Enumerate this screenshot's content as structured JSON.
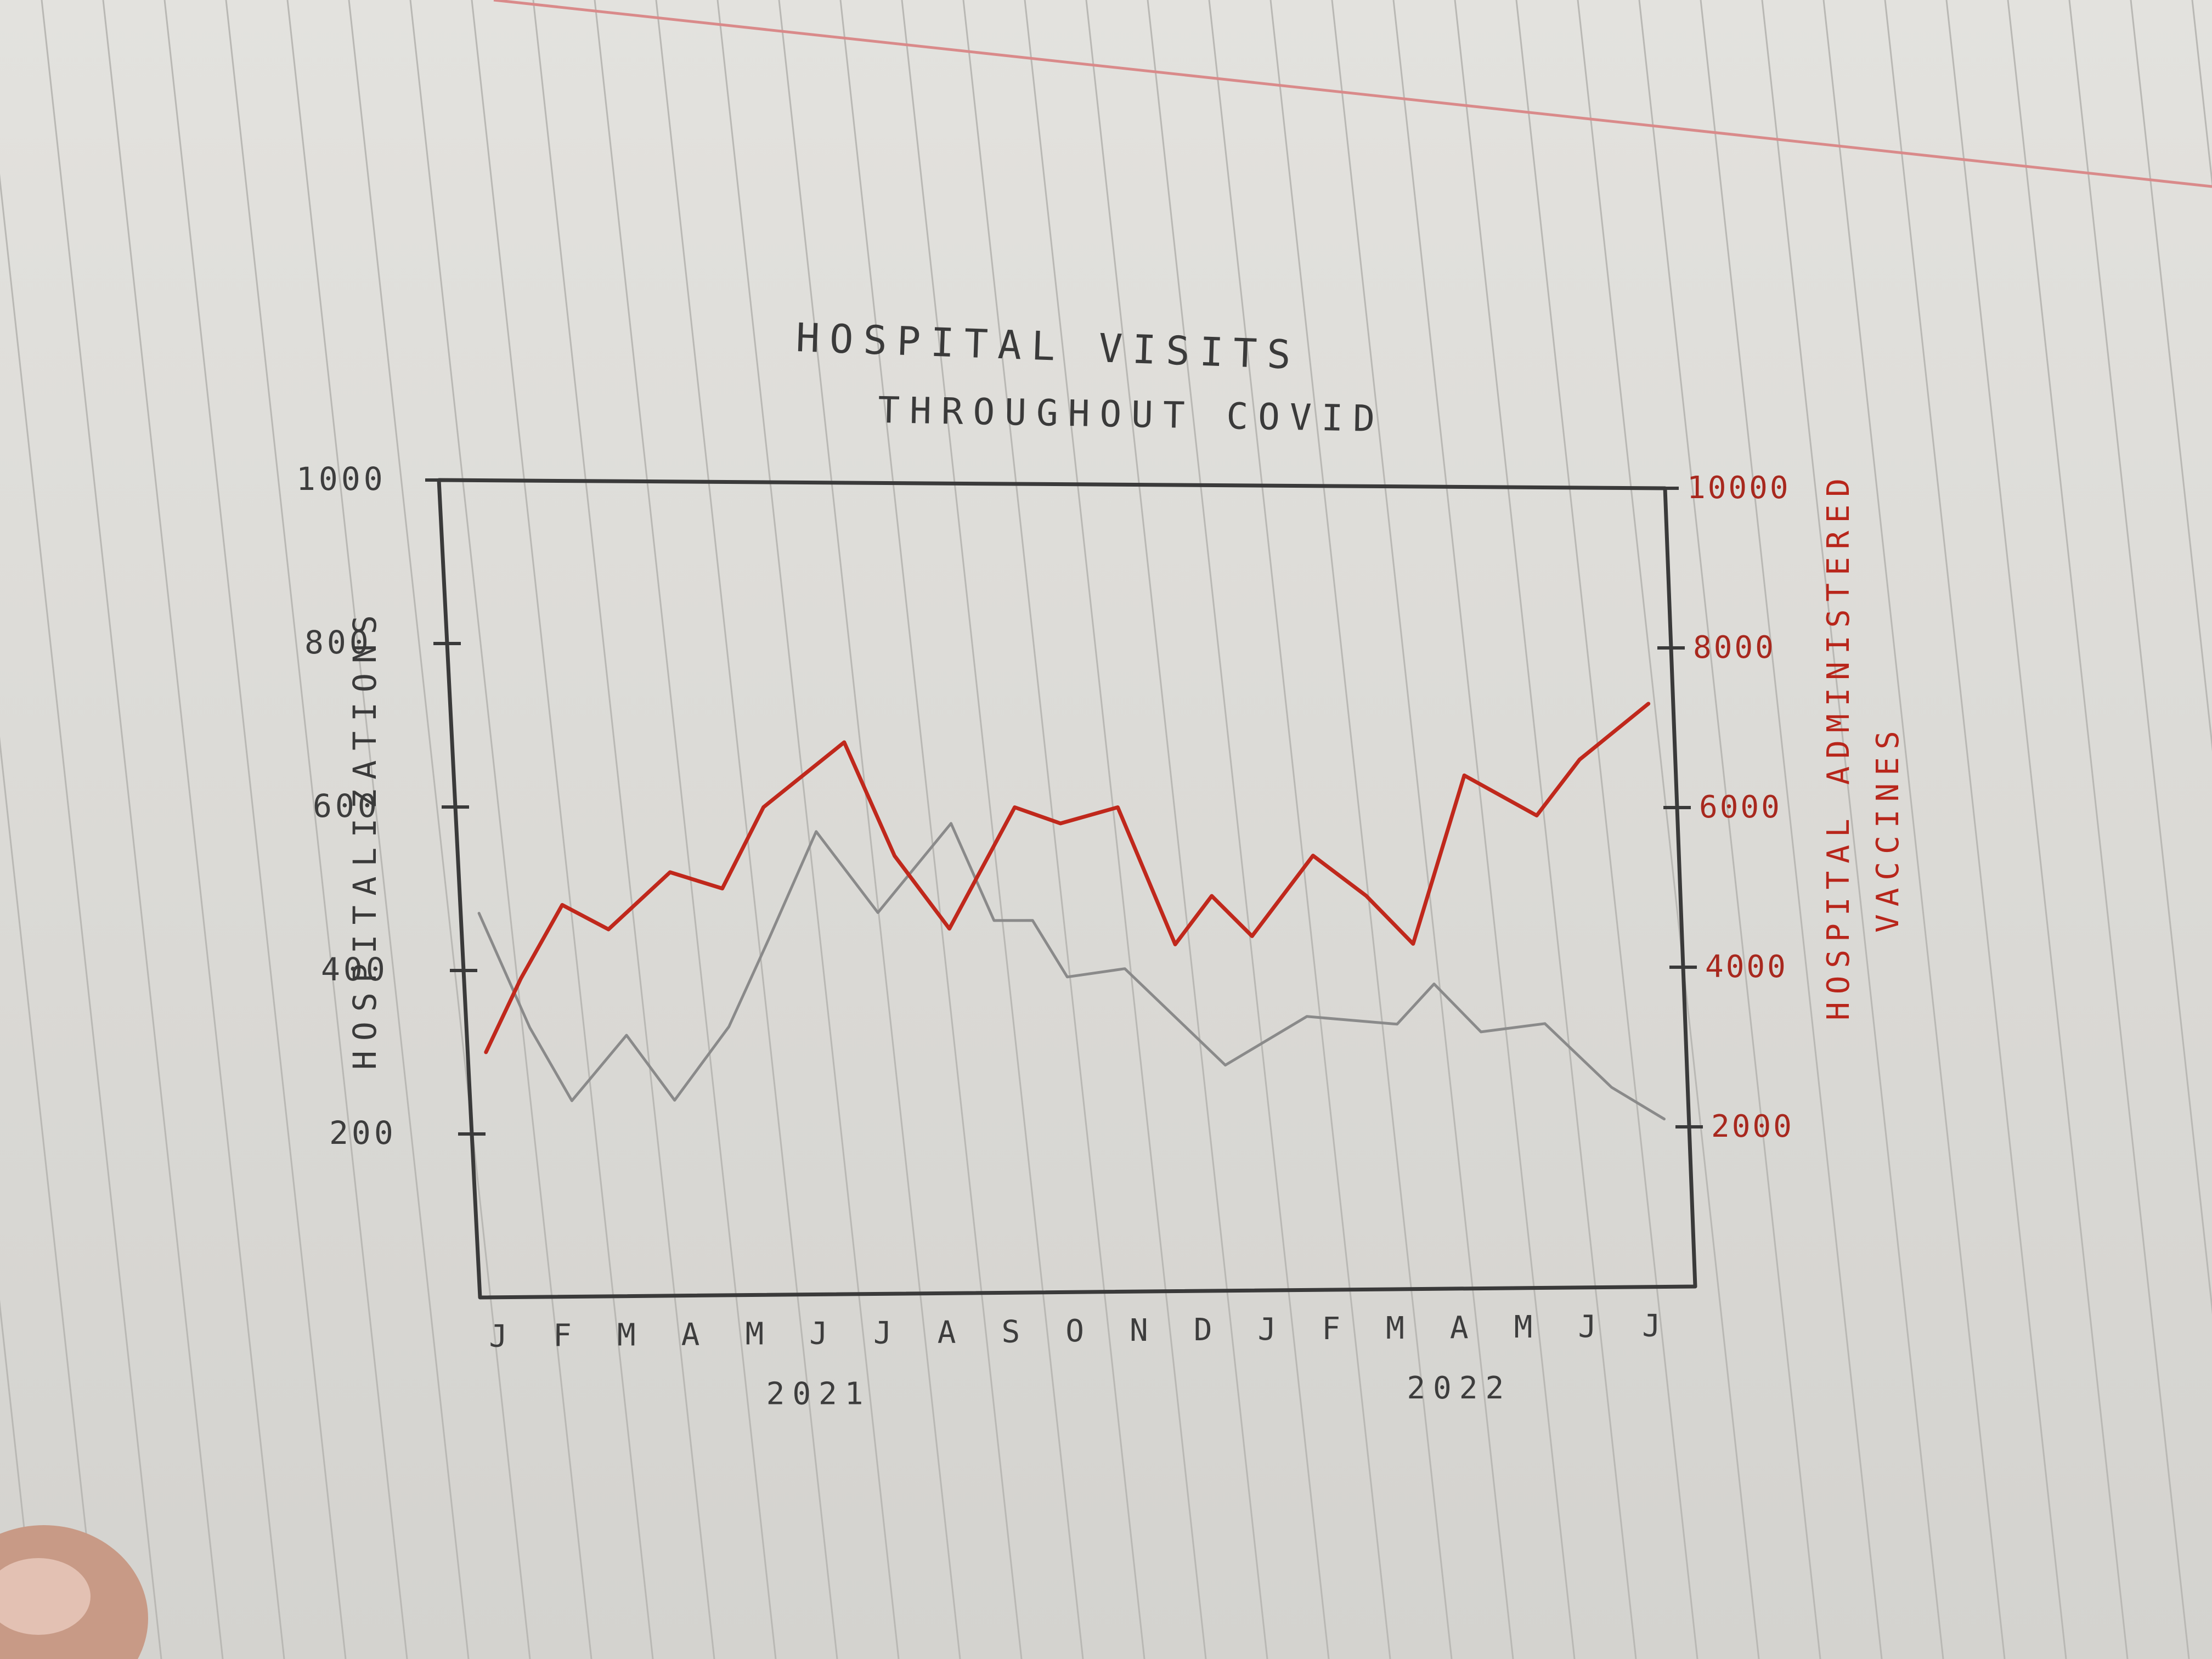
{
  "chart_data": {
    "type": "line",
    "title": "HOSPITAL VISITS",
    "subtitle": "THROUGHOUT COVID",
    "ylabel_left": "HOSPITALIZATIONS",
    "ylabel_right_line1": "HOSPITAL ADMINISTERED",
    "ylabel_right_line2": "VACCINES",
    "categories": [
      "J",
      "F",
      "M",
      "A",
      "M",
      "J",
      "J",
      "A",
      "S",
      "O",
      "N",
      "D",
      "J",
      "F",
      "M",
      "A",
      "M",
      "J",
      "J"
    ],
    "year_labels": [
      {
        "label": "2021",
        "at_category": 5
      },
      {
        "label": "2022",
        "at_category": 15
      }
    ],
    "left_axis": {
      "ylim": [
        0,
        1000
      ],
      "tick_values": [
        200,
        400,
        600,
        800,
        1000
      ],
      "tick_labels": [
        "200",
        "400",
        "600",
        "800",
        "1000"
      ]
    },
    "right_axis": {
      "ylim": [
        0,
        10000
      ],
      "tick_values": [
        2000,
        4000,
        6000,
        8000,
        10000
      ],
      "tick_labels": [
        "2000",
        "4000",
        "6000",
        "8000",
        "10000"
      ]
    },
    "series": [
      {
        "axis": "left",
        "color": "#8a8a8a",
        "x": [
          0,
          0.7,
          1.3,
          2.2,
          2.9,
          3.8,
          4.5,
          5.3,
          6.2,
          7.4,
          8.0,
          8.6,
          9.1,
          10.0,
          11.5,
          12.8,
          14.2,
          14.8,
          15.5,
          16.5,
          17.5,
          18.3
        ],
        "values": [
          470,
          330,
          240,
          320,
          240,
          330,
          440,
          570,
          470,
          580,
          460,
          460,
          390,
          400,
          280,
          340,
          330,
          380,
          320,
          330,
          250,
          210
        ]
      },
      {
        "axis": "right",
        "color": "#c0281c",
        "x": [
          0,
          0.6,
          1.3,
          2.0,
          3.0,
          3.8,
          4.5,
          5.8,
          6.5,
          7.3,
          8.4,
          9.1,
          10.0,
          10.8,
          11.4,
          12.0,
          13.0,
          13.8,
          14.5,
          15.4,
          16.5,
          17.2,
          18.3
        ],
        "values": [
          3000,
          3900,
          4800,
          4500,
          5200,
          5000,
          6000,
          6800,
          5400,
          4500,
          6000,
          5800,
          6000,
          4300,
          4900,
          4400,
          5400,
          4900,
          4300,
          6400,
          5900,
          6600,
          7300
        ]
      }
    ]
  }
}
